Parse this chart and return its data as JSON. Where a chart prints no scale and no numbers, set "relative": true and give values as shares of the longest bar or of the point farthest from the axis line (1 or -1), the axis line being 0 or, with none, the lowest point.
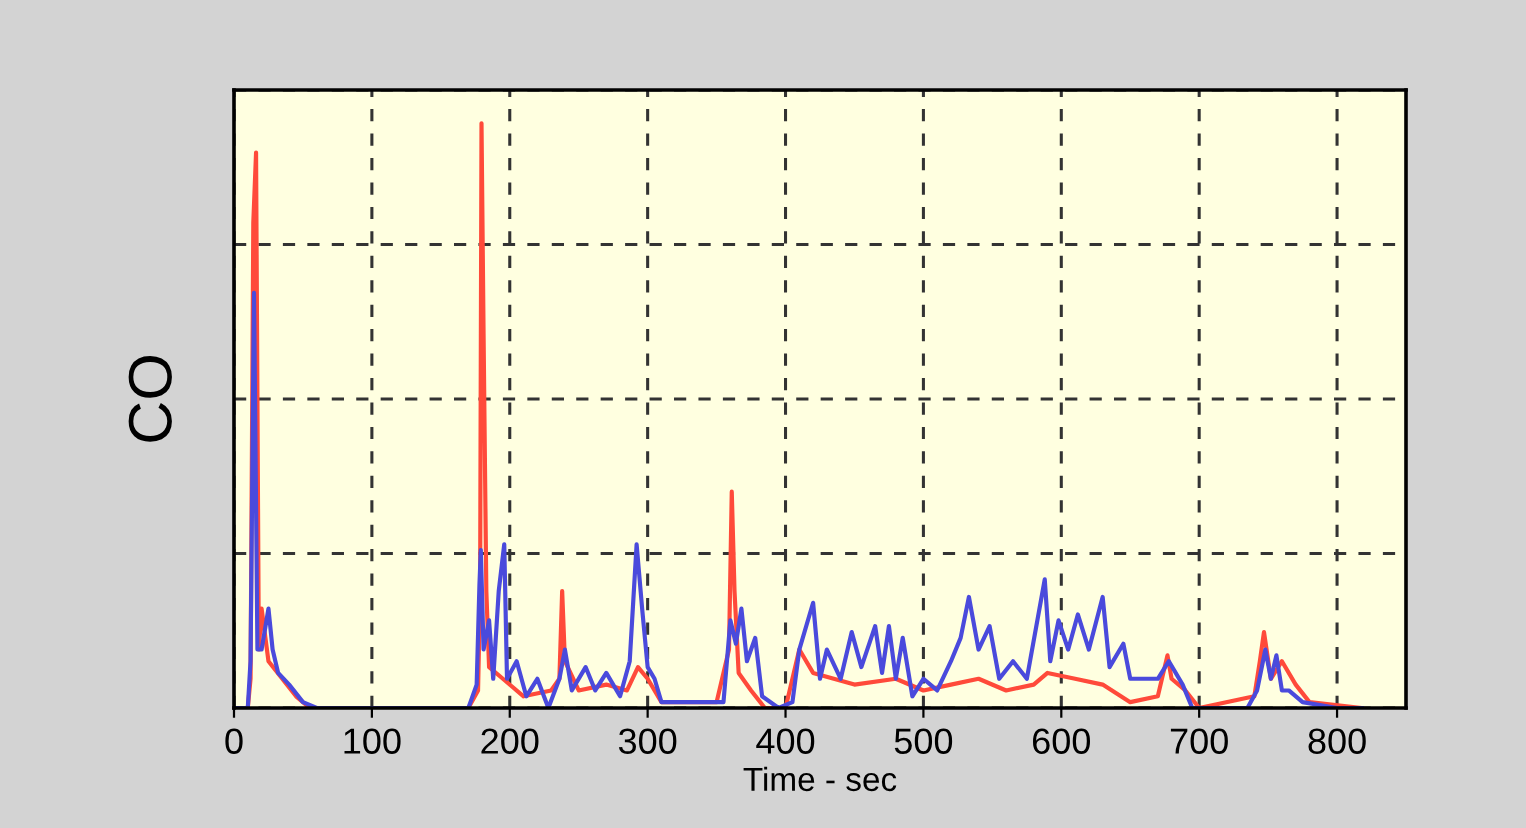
{
  "chart_data": {
    "type": "line",
    "xlabel": "Time - sec",
    "ylabel": "CO",
    "relative": true,
    "xlim": [
      0,
      850
    ],
    "xticks": [
      0,
      100,
      200,
      300,
      400,
      500,
      600,
      700,
      800
    ],
    "grid": true,
    "tick_labels": "x",
    "line_style": "solid",
    "series": [
      {
        "color": "#ff4a3a",
        "x": [
          0,
          10,
          12,
          14,
          16,
          18,
          20,
          25,
          35,
          45,
          55,
          170,
          177,
          178.5,
          179.5,
          181,
          183,
          185,
          195,
          210,
          230,
          236,
          238,
          240,
          250,
          270,
          285,
          293,
          300,
          310,
          350,
          359,
          361,
          363,
          366,
          375,
          385,
          400,
          410,
          420,
          450,
          480,
          500,
          520,
          540,
          560,
          580,
          590,
          610,
          630,
          650,
          670,
          677,
          680,
          690,
          700,
          740,
          744,
          747,
          752,
          760,
          770,
          780,
          818
        ],
        "values": [
          0,
          0,
          0.05,
          0.83,
          0.95,
          0.1,
          0.17,
          0.08,
          0.05,
          0.02,
          0,
          0,
          0.03,
          0.2,
          1.0,
          0.64,
          0.2,
          0.07,
          0.05,
          0.02,
          0.03,
          0.05,
          0.2,
          0.08,
          0.03,
          0.04,
          0.03,
          0.07,
          0.05,
          0.01,
          0.01,
          0.1,
          0.37,
          0.2,
          0.06,
          0.03,
          0,
          0,
          0.1,
          0.06,
          0.04,
          0.05,
          0.03,
          0.04,
          0.05,
          0.03,
          0.04,
          0.06,
          0.05,
          0.04,
          0.01,
          0.02,
          0.09,
          0.05,
          0.03,
          0,
          0.02,
          0.08,
          0.13,
          0.05,
          0.08,
          0.04,
          0.01,
          0
        ]
      },
      {
        "color": "#4a4adc",
        "x": [
          0,
          10,
          12,
          14.5,
          17,
          20,
          25,
          28,
          32,
          40,
          50,
          60,
          170,
          176,
          178,
          179,
          181,
          185,
          188,
          192,
          196,
          198,
          205,
          212,
          220,
          228,
          236,
          240,
          245,
          255,
          262,
          270,
          280,
          287,
          292,
          296,
          300,
          305,
          310,
          355,
          360,
          364,
          368,
          372,
          378,
          383,
          395,
          405,
          410,
          420,
          425,
          430,
          440,
          448,
          455,
          465,
          470,
          475,
          480,
          485,
          492,
          500,
          510,
          520,
          527,
          533,
          540,
          548,
          555,
          565,
          575,
          588,
          592,
          598,
          605,
          612,
          620,
          630,
          635,
          645,
          650,
          655,
          670,
          678,
          688,
          695,
          735,
          742,
          748,
          752,
          756,
          760,
          765,
          775,
          800,
          818
        ],
        "values": [
          0,
          0,
          0.08,
          0.71,
          0.1,
          0.1,
          0.17,
          0.1,
          0.06,
          0.04,
          0.01,
          0,
          0,
          0.04,
          0.21,
          0.27,
          0.1,
          0.15,
          0.05,
          0.2,
          0.28,
          0.05,
          0.08,
          0.02,
          0.05,
          0,
          0.05,
          0.1,
          0.03,
          0.07,
          0.03,
          0.06,
          0.02,
          0.08,
          0.28,
          0.17,
          0.07,
          0.05,
          0.01,
          0.01,
          0.15,
          0.11,
          0.17,
          0.08,
          0.12,
          0.02,
          0,
          0.01,
          0.1,
          0.18,
          0.05,
          0.1,
          0.05,
          0.13,
          0.07,
          0.14,
          0.06,
          0.14,
          0.05,
          0.12,
          0.02,
          0.05,
          0.03,
          0.08,
          0.12,
          0.19,
          0.1,
          0.14,
          0.05,
          0.08,
          0.05,
          0.22,
          0.08,
          0.15,
          0.1,
          0.16,
          0.1,
          0.19,
          0.07,
          0.11,
          0.05,
          0.05,
          0.05,
          0.08,
          0.04,
          0,
          0,
          0.03,
          0.1,
          0.05,
          0.09,
          0.03,
          0.03,
          0.01,
          0,
          0
        ]
      }
    ]
  }
}
